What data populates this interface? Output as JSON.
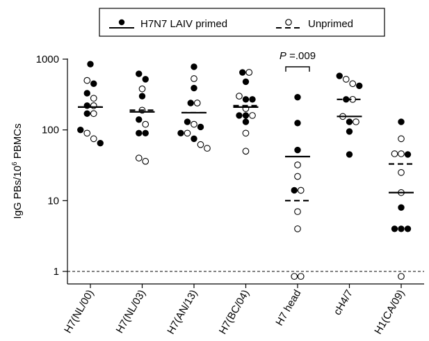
{
  "chart_data": {
    "type": "scatter",
    "title": "",
    "xlabel": "",
    "ylabel": "IgG PBs/10",
    "ylabel_sup": "6",
    "ylabel_suffix": " PBMCs",
    "yscale": "log",
    "ylim": [
      0.7,
      1000
    ],
    "yticks": [
      1,
      10,
      100,
      1000
    ],
    "ytick_labels": [
      "1",
      "10",
      "100",
      "1000"
    ],
    "reference_line": 1,
    "legend_position": "top",
    "categories": [
      "H7(NL/00)",
      "H7(NL/03)",
      "H7(AN/13)",
      "H7(BC/04)",
      "H7 head",
      "cH4/7",
      "H1(CA/09)"
    ],
    "series": [
      {
        "name": "H7N7 LAIV primed",
        "marker": "filled-circle",
        "median_line": "solid",
        "medians": [
          210,
          180,
          175,
          210,
          42,
          155,
          13
        ],
        "points": [
          [
            850,
            450,
            330,
            220,
            170,
            100,
            65
          ],
          [
            620,
            520,
            300,
            90,
            90,
            140
          ],
          [
            780,
            390,
            240,
            130,
            110,
            90,
            75
          ],
          [
            650,
            480,
            270,
            270,
            160,
            160,
            130
          ],
          [
            290,
            125,
            52,
            14
          ],
          [
            580,
            420,
            270,
            130,
            95,
            45
          ],
          [
            130,
            45,
            8,
            4,
            4,
            4
          ]
        ]
      },
      {
        "name": "Unprimed",
        "marker": "open-circle",
        "median_line": "dashed",
        "medians": [
          210,
          190,
          175,
          220,
          10,
          270,
          33
        ],
        "points": [
          [
            500,
            280,
            220,
            170,
            90,
            75
          ],
          [
            380,
            190,
            120,
            40,
            36
          ],
          [
            530,
            240,
            120,
            90,
            62,
            55
          ],
          [
            650,
            300,
            200,
            160,
            90,
            50
          ],
          [
            32,
            22,
            14,
            7,
            4,
            0.85,
            0.85
          ],
          [
            520,
            450,
            270,
            155,
            130
          ],
          [
            75,
            46,
            46,
            25,
            13,
            0.85
          ]
        ]
      }
    ],
    "annotations": [
      {
        "text_italic": "P",
        "text": " =.009",
        "category": "H7 head"
      }
    ]
  }
}
